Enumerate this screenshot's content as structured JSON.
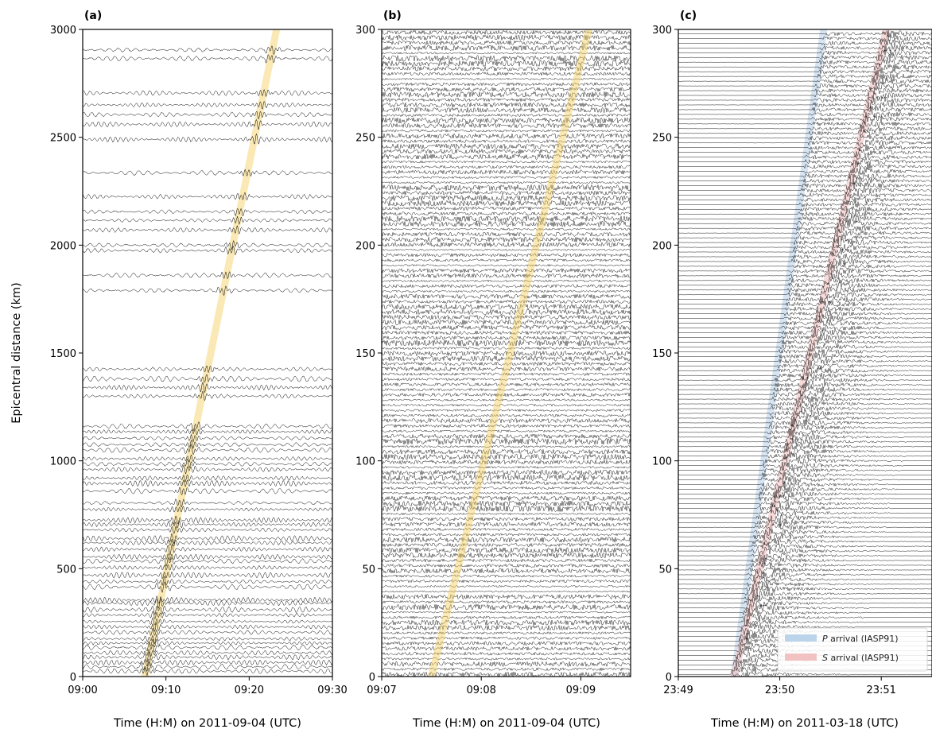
{
  "chart_data": [
    {
      "type": "line",
      "panel_label": "(a)",
      "xlabel": "Time (H:M) on 2011-09-04 (UTC)",
      "ylabel": "Epicentral distance (km)",
      "xlim_minutes": [
        0,
        30
      ],
      "x_tick_labels": [
        "09:00",
        "09:10",
        "09:20",
        "09:30"
      ],
      "x_tick_values_minutes": [
        0,
        10,
        20,
        30
      ],
      "ylim": [
        0,
        3000
      ],
      "y_ticks": [
        0,
        500,
        1000,
        1500,
        2000,
        2500,
        3000
      ],
      "trace_distances_km": [
        25,
        45,
        65,
        90,
        110,
        135,
        155,
        175,
        205,
        230,
        255,
        285,
        310,
        340,
        355,
        415,
        440,
        470,
        505,
        535,
        555,
        590,
        620,
        640,
        680,
        705,
        725,
        775,
        805,
        860,
        895,
        920,
        960,
        985,
        1010,
        1050,
        1075,
        1105,
        1135,
        1160,
        1300,
        1340,
        1380,
        1425,
        1790,
        1860,
        1975,
        2000,
        2070,
        2115,
        2155,
        2225,
        2335,
        2490,
        2560,
        2605,
        2650,
        2705,
        2865,
        2905
      ],
      "arrival_band": {
        "start_minute": 7.5,
        "velocity_km_per_min": 190,
        "color": "#f5cf5c"
      }
    },
    {
      "type": "line",
      "panel_label": "(b)",
      "xlabel": "Time (H:M) on 2011-09-04 (UTC)",
      "xlim_minutes": [
        7,
        9.5
      ],
      "x_tick_labels": [
        "09:07",
        "09:08",
        "09:09"
      ],
      "x_tick_values_minutes": [
        7,
        8,
        9
      ],
      "ylim": [
        0,
        300
      ],
      "y_ticks": [
        0,
        50,
        100,
        150,
        200,
        250,
        300
      ],
      "arrival_band": {
        "start_minute": 7.5,
        "velocity_km_per_min": 190,
        "color": "#f5cf5c"
      }
    },
    {
      "type": "line",
      "panel_label": "(c)",
      "xlabel": "Time (H:M) on 2011-03-18 (UTC)",
      "xlim_minutes": [
        0,
        2.5
      ],
      "x_tick_labels": [
        "23:49",
        "23:50",
        "23:51"
      ],
      "x_tick_values_minutes": [
        0,
        1,
        2
      ],
      "ylim": [
        0,
        300
      ],
      "y_ticks": [
        0,
        50,
        100,
        150,
        200,
        250,
        300
      ],
      "p_arrival": {
        "start_minute": 0.55,
        "velocity_km_per_min": 340,
        "color": "#bcd4ea"
      },
      "s_arrival": {
        "start_minute": 0.55,
        "velocity_km_per_min": 200,
        "color": "#f2c2c2"
      },
      "legend": [
        {
          "italic": "P",
          "label": " arrival (IASP91)",
          "color": "#bcd4ea"
        },
        {
          "italic": "S",
          "label": " arrival (IASP91)",
          "color": "#f2c2c2"
        }
      ],
      "legend_position": "lower right"
    }
  ]
}
